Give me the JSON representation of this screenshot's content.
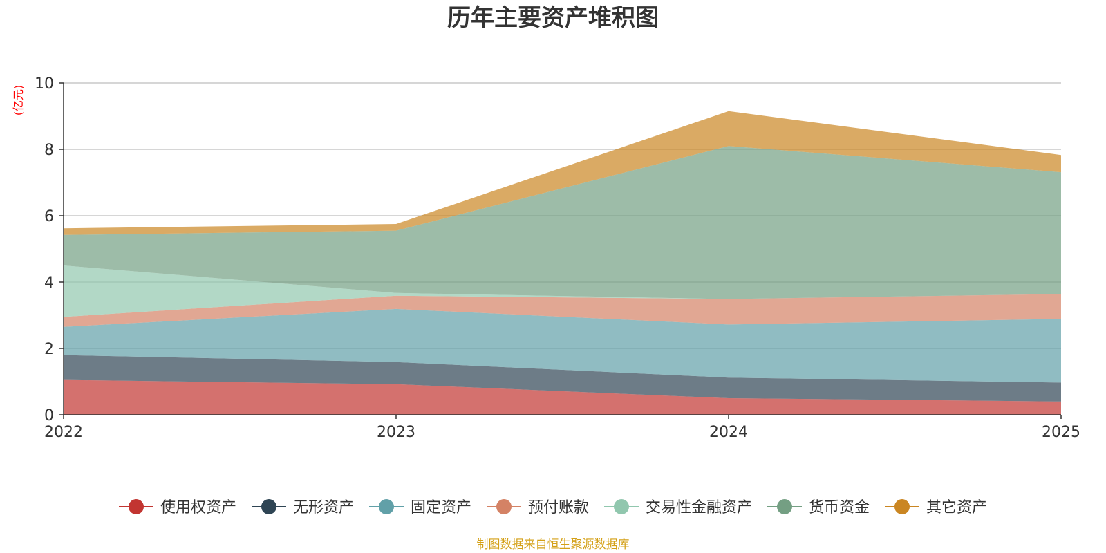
{
  "chart_data": {
    "type": "area",
    "stacked": true,
    "title": "历年主要资产堆积图",
    "unit_label": "(亿元)",
    "x": [
      "2022",
      "2023",
      "2024",
      "2025"
    ],
    "ylim": [
      0,
      10
    ],
    "yticks": [
      0,
      2,
      4,
      6,
      8,
      10
    ],
    "grid": true,
    "legend_position": "bottom",
    "series": [
      {
        "name": "使用权资产",
        "color": "#c23531",
        "values": [
          1.05,
          0.92,
          0.5,
          0.4
        ]
      },
      {
        "name": "无形资产",
        "color": "#2f4554",
        "values": [
          0.75,
          0.67,
          0.62,
          0.57
        ]
      },
      {
        "name": "固定资产",
        "color": "#61a0a8",
        "values": [
          0.85,
          1.6,
          1.6,
          1.92
        ]
      },
      {
        "name": "预付账款",
        "color": "#d48265",
        "values": [
          0.3,
          0.4,
          0.77,
          0.75
        ]
      },
      {
        "name": "交易性金融资产",
        "color": "#91c7ae",
        "values": [
          1.55,
          0.08,
          0.0,
          0.0
        ]
      },
      {
        "name": "货币资金",
        "color": "#749f83",
        "values": [
          0.92,
          1.88,
          4.61,
          3.67
        ]
      },
      {
        "name": "其它资产",
        "color": "#ca8622",
        "values": [
          0.2,
          0.2,
          1.05,
          0.52
        ]
      }
    ],
    "unit_color": "#ff0000",
    "source_color": "#d4a017"
  },
  "footer": {
    "source_text": "制图数据来自恒生聚源数据库"
  }
}
